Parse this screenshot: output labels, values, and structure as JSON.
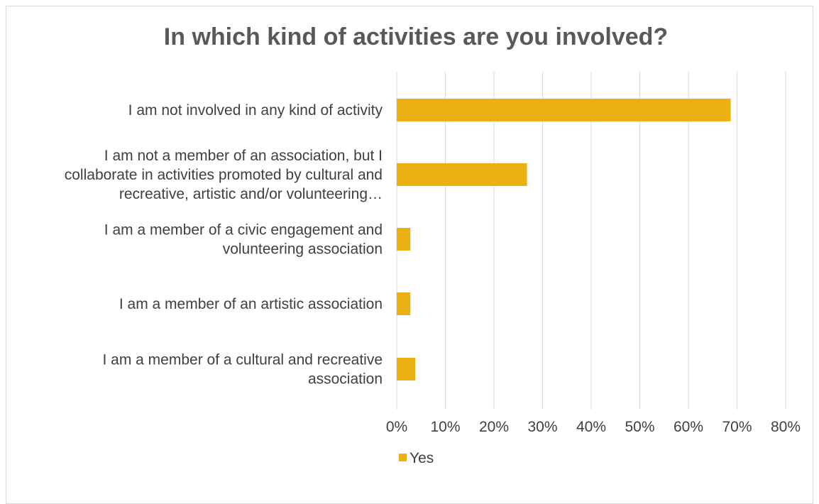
{
  "chart_data": {
    "type": "bar",
    "orientation": "horizontal",
    "title": "In which kind of activities are you involved?",
    "categories": [
      [
        "I am not involved in any kind of activity"
      ],
      [
        "I am not a member of an association, but I",
        "collaborate in activities promoted by cultural and",
        "recreative, artistic and/or volunteering…"
      ],
      [
        "I am a member of a civic engagement and",
        "volunteering association"
      ],
      [
        "I am a member of an artistic association"
      ],
      [
        "I am a member of a cultural and recreative",
        "association"
      ]
    ],
    "series": [
      {
        "name": "Yes",
        "values": [
          68.7,
          26.8,
          2.8,
          2.8,
          3.8
        ]
      }
    ],
    "xlim": [
      0,
      80
    ],
    "ticks": [
      "0%",
      "10%",
      "20%",
      "30%",
      "40%",
      "50%",
      "60%",
      "70%",
      "80%"
    ],
    "grid": true,
    "legend_position": "bottom",
    "colors": {
      "bar": "#ebb012",
      "grid": "#d9d9d9",
      "text": "#404040",
      "title": "#595959"
    }
  }
}
